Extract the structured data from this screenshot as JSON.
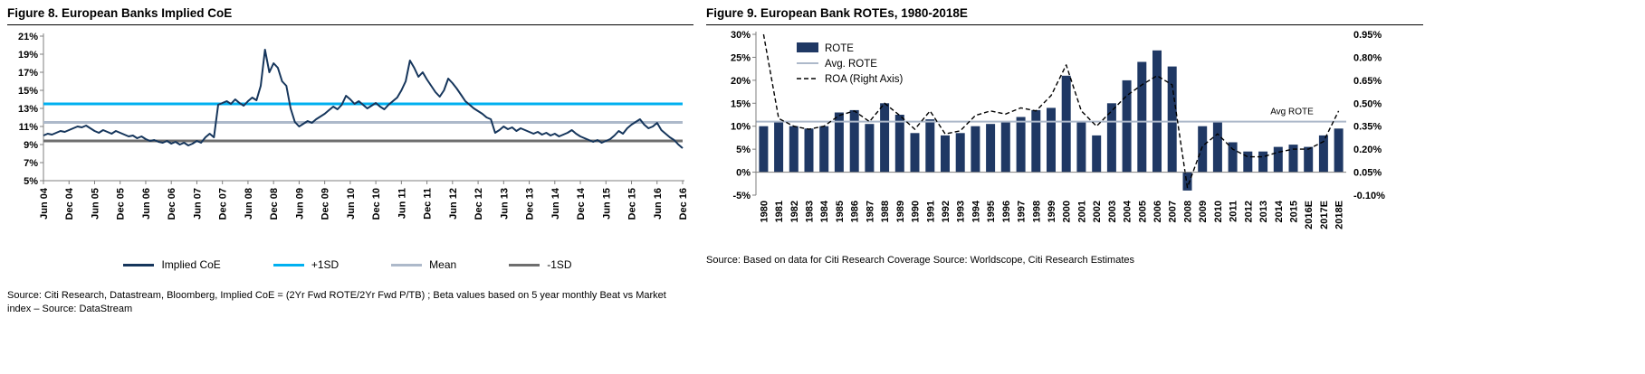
{
  "figure8": {
    "title": "Figure 8. European Banks Implied CoE",
    "legend": [
      {
        "label": "Implied CoE",
        "color": "#16365C",
        "thickness": 3
      },
      {
        "label": "+1SD",
        "color": "#00B0F0",
        "thickness": 3
      },
      {
        "label": "Mean",
        "color": "#ADB9CA",
        "thickness": 3
      },
      {
        "label": "-1SD",
        "color": "#6E6E6E",
        "thickness": 3
      }
    ],
    "source_line1": "Source: Citi Research, Datastream, Bloomberg,  Implied CoE = (2Yr Fwd ROTE/2Yr Fwd P/TB) ; Beta values based on 5 year monthly Beat vs Market",
    "source_line2": "index – Source: DataStream"
  },
  "figure9": {
    "title": "Figure 9. European Bank ROTEs, 1980-2018E",
    "legend": [
      {
        "label": "ROTE",
        "swatch": "box",
        "color": "#1F3864"
      },
      {
        "label": "Avg. ROTE",
        "swatch": "line",
        "color": "#ADB9CA"
      },
      {
        "label": "ROA (Right Axis)",
        "swatch": "dashed",
        "color": "#000000"
      }
    ],
    "annotation": "Avg ROTE",
    "source": "Source: Based on data for Citi Research Coverage   Source: Worldscope, Citi Research Estimates"
  },
  "chart_data": [
    {
      "id": "implied-coe",
      "type": "line",
      "title": "European Banks Implied CoE",
      "ylim": [
        5,
        21
      ],
      "yticks": [
        21,
        19,
        17,
        15,
        13,
        11,
        9,
        7,
        5
      ],
      "ytick_suffix": "%",
      "x_tick_interval": 6,
      "x_tick_labels": [
        "Jun 04",
        "Dec 04",
        "Jun 05",
        "Dec 05",
        "Jun 06",
        "Dec 06",
        "Jun 07",
        "Dec 07",
        "Jun 08",
        "Dec 08",
        "Jun 09",
        "Dec 09",
        "Jun 10",
        "Dec 10",
        "Jun 11",
        "Dec 11",
        "Jun 12",
        "Dec 12",
        "Jun 13",
        "Dec 13",
        "Jun 14",
        "Dec 14",
        "Jun 15",
        "Dec 15",
        "Jun 16",
        "Dec 16"
      ],
      "series": [
        {
          "name": "Implied CoE",
          "type": "line",
          "color": "#16365C",
          "values": [
            10.0,
            10.2,
            10.1,
            10.3,
            10.5,
            10.4,
            10.6,
            10.8,
            11.0,
            10.9,
            11.1,
            10.8,
            10.5,
            10.3,
            10.6,
            10.4,
            10.2,
            10.5,
            10.3,
            10.1,
            9.9,
            10.0,
            9.7,
            9.9,
            9.6,
            9.4,
            9.5,
            9.3,
            9.2,
            9.4,
            9.1,
            9.3,
            9.0,
            9.2,
            8.9,
            9.1,
            9.4,
            9.2,
            9.8,
            10.2,
            9.8,
            13.4,
            13.6,
            13.8,
            13.5,
            14.0,
            13.6,
            13.3,
            13.8,
            14.2,
            13.9,
            15.5,
            19.5,
            17.0,
            18.0,
            17.5,
            16.0,
            15.5,
            13.0,
            11.5,
            11.0,
            11.3,
            11.6,
            11.4,
            11.8,
            12.1,
            12.4,
            12.8,
            13.2,
            12.9,
            13.4,
            14.4,
            14.0,
            13.5,
            13.8,
            13.4,
            13.0,
            13.3,
            13.6,
            13.2,
            12.9,
            13.4,
            13.8,
            14.2,
            15.0,
            16.0,
            18.3,
            17.5,
            16.5,
            17.0,
            16.2,
            15.5,
            14.8,
            14.3,
            15.0,
            16.3,
            15.8,
            15.2,
            14.5,
            13.8,
            13.4,
            13.0,
            12.7,
            12.4,
            12.0,
            11.8,
            10.3,
            10.6,
            11.0,
            10.7,
            10.9,
            10.5,
            10.8,
            10.6,
            10.4,
            10.2,
            10.4,
            10.1,
            10.3,
            10.0,
            10.2,
            9.9,
            10.1,
            10.3,
            10.6,
            10.2,
            9.9,
            9.7,
            9.5,
            9.3,
            9.5,
            9.2,
            9.4,
            9.6,
            10.0,
            10.5,
            10.2,
            10.8,
            11.2,
            11.5,
            11.8,
            11.2,
            10.8,
            11.0,
            11.4,
            10.6,
            10.2,
            9.8,
            9.5,
            9.0,
            8.6
          ]
        },
        {
          "name": "+1SD",
          "type": "hline",
          "color": "#00B0F0",
          "value": 13.5
        },
        {
          "name": "Mean",
          "type": "hline",
          "color": "#ADB9CA",
          "value": 11.45
        },
        {
          "name": "-1SD",
          "type": "hline",
          "color": "#6E6E6E",
          "value": 9.4
        }
      ]
    },
    {
      "id": "rote-roa",
      "type": "bar",
      "title": "European Bank ROTEs, 1980-2018E",
      "categories": [
        "1980",
        "1981",
        "1982",
        "1983",
        "1984",
        "1985",
        "1986",
        "1987",
        "1988",
        "1989",
        "1990",
        "1991",
        "1992",
        "1993",
        "1994",
        "1995",
        "1996",
        "1997",
        "1998",
        "1999",
        "2000",
        "2001",
        "2002",
        "2003",
        "2004",
        "2005",
        "2006",
        "2007",
        "2008",
        "2009",
        "2010",
        "2011",
        "2012",
        "2013",
        "2014",
        "2015",
        "2016E",
        "2017E",
        "2018E"
      ],
      "left_axis": {
        "lim": [
          -5,
          30
        ],
        "ticks": [
          30,
          25,
          20,
          15,
          10,
          5,
          0,
          -5
        ],
        "suffix": "%"
      },
      "right_axis": {
        "lim": [
          -0.1,
          0.95
        ],
        "tick_labels": [
          "0.95%",
          "0.80%",
          "0.65%",
          "0.50%",
          "0.35%",
          "0.20%",
          "0.05%",
          "-0.10%"
        ]
      },
      "series": [
        {
          "name": "ROTE",
          "type": "bar",
          "axis": "left",
          "color": "#1F3864",
          "values": [
            10,
            11,
            10,
            9.5,
            10,
            13,
            13.5,
            10.5,
            15,
            12.5,
            8.5,
            11.5,
            8,
            8.5,
            10,
            10.5,
            11,
            12,
            13.5,
            14,
            21,
            11,
            8,
            15,
            20,
            24,
            26.5,
            23,
            -4,
            10,
            11,
            6.5,
            4.5,
            4.5,
            5.5,
            6,
            5.5,
            8,
            9.5
          ]
        },
        {
          "name": "Avg. ROTE",
          "type": "hline",
          "axis": "left",
          "color": "#ADB9CA",
          "value": 11
        },
        {
          "name": "ROA (Right Axis)",
          "type": "dashed-line",
          "axis": "right",
          "color": "#000000",
          "values": [
            0.95,
            0.4,
            0.35,
            0.33,
            0.35,
            0.42,
            0.45,
            0.38,
            0.5,
            0.42,
            0.33,
            0.45,
            0.3,
            0.32,
            0.42,
            0.45,
            0.43,
            0.47,
            0.45,
            0.55,
            0.75,
            0.45,
            0.35,
            0.45,
            0.55,
            0.62,
            0.68,
            0.62,
            -0.05,
            0.22,
            0.3,
            0.2,
            0.15,
            0.15,
            0.18,
            0.2,
            0.2,
            0.25,
            0.45
          ]
        }
      ]
    }
  ]
}
